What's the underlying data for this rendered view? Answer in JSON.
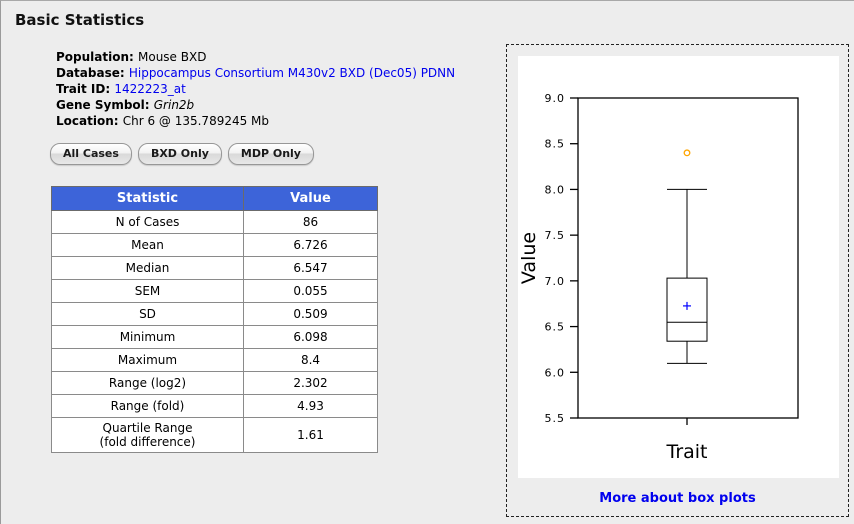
{
  "page": {
    "title": "Basic Statistics"
  },
  "info": {
    "rows": [
      {
        "key": "population",
        "label": "Population:",
        "value": "Mouse BXD",
        "type": "text"
      },
      {
        "key": "database",
        "label": "Database:",
        "value": "Hippocampus Consortium M430v2 BXD (Dec05) PDNN",
        "type": "link"
      },
      {
        "key": "trait-id",
        "label": "Trait ID:",
        "value": "1422223_at",
        "type": "link"
      },
      {
        "key": "gene-symbol",
        "label": "Gene Symbol:",
        "value": "Grin2b",
        "type": "italic"
      },
      {
        "key": "location",
        "label": "Location:",
        "value": "Chr 6 @ 135.789245 Mb",
        "type": "text"
      }
    ]
  },
  "buttons": [
    {
      "name": "all-cases-button",
      "label": "All Cases"
    },
    {
      "name": "bxd-only-button",
      "label": "BXD Only"
    },
    {
      "name": "mdp-only-button",
      "label": "MDP Only"
    }
  ],
  "table": {
    "headers": [
      "Statistic",
      "Value"
    ],
    "header_bg": "#3d64d9",
    "rows": [
      [
        "N of Cases",
        "86"
      ],
      [
        "Mean",
        "6.726"
      ],
      [
        "Median",
        "6.547"
      ],
      [
        "SEM",
        "0.055"
      ],
      [
        "SD",
        "0.509"
      ],
      [
        "Minimum",
        "6.098"
      ],
      [
        "Maximum",
        "8.4"
      ],
      [
        "Range (log2)",
        "2.302"
      ],
      [
        "Range (fold)",
        "4.93"
      ],
      [
        "Quartile Range\n(fold difference)",
        "1.61"
      ]
    ]
  },
  "chart_data": {
    "type": "boxplot",
    "title": "",
    "xlabel": "Trait",
    "ylabel": "Value",
    "ylim": [
      5.5,
      9.0
    ],
    "yticks": [
      5.5,
      6.0,
      6.5,
      7.0,
      7.5,
      8.0,
      8.5,
      9.0
    ],
    "grid": false,
    "series": [
      {
        "name": "Trait",
        "min": 6.098,
        "q1": 6.34,
        "median": 6.547,
        "q3": 7.03,
        "max": 8.4,
        "mean": 6.726,
        "whisker_low": 6.098,
        "whisker_high": 8.0,
        "outliers": [
          8.4
        ]
      }
    ],
    "colors": {
      "box": "#000000",
      "mean_marker": "#0000ff",
      "outlier": "#ffa500"
    }
  },
  "panel": {
    "more_link": "More about box plots"
  }
}
